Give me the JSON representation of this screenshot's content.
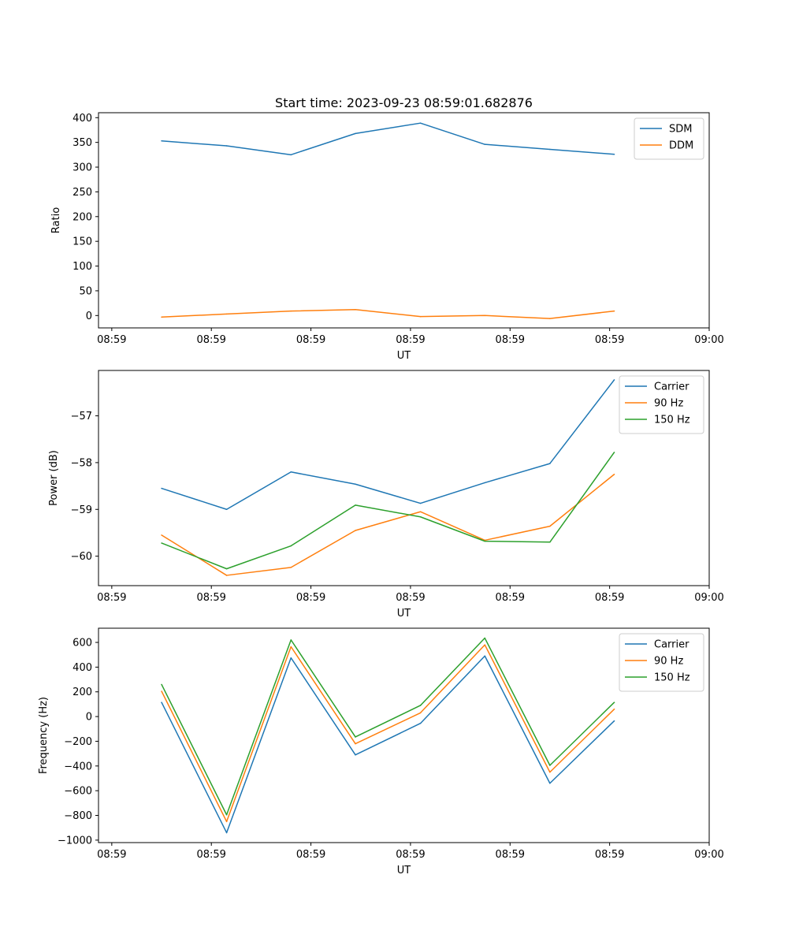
{
  "chart_data": [
    {
      "id": "ratio",
      "type": "line",
      "title": "Start time: 2023-09-23 08:59:01.682876",
      "xlabel": "UT",
      "ylabel": "Ratio",
      "xlim": [
        -0.2,
        9
      ],
      "ylim": [
        -25,
        410
      ],
      "x_tick_positions": [
        0,
        1.5,
        3,
        4.5,
        6,
        7.5,
        9
      ],
      "x_tick_labels": [
        "08:59",
        "08:59",
        "08:59",
        "08:59",
        "08:59",
        "08:59",
        "09:00"
      ],
      "y_ticks": [
        0,
        50,
        100,
        150,
        200,
        250,
        300,
        350,
        400
      ],
      "y_tick_labels": [
        "0",
        "50",
        "100",
        "150",
        "200",
        "250",
        "300",
        "350",
        "400"
      ],
      "x": [
        0.75,
        1.73,
        2.7,
        3.67,
        4.65,
        5.62,
        6.6,
        7.57
      ],
      "series": [
        {
          "name": "SDM",
          "color": "#1f77b4",
          "values": [
            353,
            343,
            325,
            368,
            389,
            346,
            336,
            326
          ]
        },
        {
          "name": "DDM",
          "color": "#ff7f0e",
          "values": [
            -3,
            3,
            9,
            12,
            -2,
            0,
            -6,
            9
          ]
        }
      ]
    },
    {
      "id": "power",
      "type": "line",
      "title": "",
      "xlabel": "UT",
      "ylabel": "Power (dB)",
      "xlim": [
        -0.2,
        9
      ],
      "ylim": [
        -60.63,
        -56.03
      ],
      "x_tick_positions": [
        0,
        1.5,
        3,
        4.5,
        6,
        7.5,
        9
      ],
      "x_tick_labels": [
        "08:59",
        "08:59",
        "08:59",
        "08:59",
        "08:59",
        "08:59",
        "09:00"
      ],
      "y_ticks": [
        -60,
        -59,
        -58,
        -57
      ],
      "y_tick_labels": [
        "−60",
        "−59",
        "−58",
        "−57"
      ],
      "x": [
        0.75,
        1.73,
        2.7,
        3.67,
        4.65,
        5.62,
        6.6,
        7.57
      ],
      "series": [
        {
          "name": "Carrier",
          "color": "#1f77b4",
          "values": [
            -58.55,
            -59.0,
            -58.2,
            -58.46,
            -58.87,
            -58.43,
            -58.02,
            -56.23
          ]
        },
        {
          "name": "90 Hz",
          "color": "#ff7f0e",
          "values": [
            -59.55,
            -60.41,
            -60.24,
            -59.45,
            -59.05,
            -59.66,
            -59.36,
            -58.25
          ]
        },
        {
          "name": "150 Hz",
          "color": "#2ca02c",
          "values": [
            -59.72,
            -60.27,
            -59.78,
            -58.91,
            -59.16,
            -59.68,
            -59.7,
            -57.78
          ]
        }
      ]
    },
    {
      "id": "frequency",
      "type": "line",
      "title": "",
      "xlabel": "UT",
      "ylabel": "Frequency (Hz)",
      "xlim": [
        -0.2,
        9
      ],
      "ylim": [
        -1020,
        715
      ],
      "x_tick_positions": [
        0,
        1.5,
        3,
        4.5,
        6,
        7.5,
        9
      ],
      "x_tick_labels": [
        "08:59",
        "08:59",
        "08:59",
        "08:59",
        "08:59",
        "08:59",
        "09:00"
      ],
      "y_ticks": [
        -1000,
        -800,
        -600,
        -400,
        -200,
        0,
        200,
        400,
        600
      ],
      "y_tick_labels": [
        "−1000",
        "−800",
        "−600",
        "−400",
        "−200",
        "0",
        "200",
        "400",
        "600"
      ],
      "x": [
        0.75,
        1.73,
        2.7,
        3.67,
        4.65,
        5.62,
        6.6,
        7.57
      ],
      "series": [
        {
          "name": "Carrier",
          "color": "#1f77b4",
          "values": [
            115,
            -940,
            475,
            -310,
            -55,
            490,
            -540,
            -35
          ]
        },
        {
          "name": "90 Hz",
          "color": "#ff7f0e",
          "values": [
            205,
            -850,
            565,
            -220,
            30,
            580,
            -450,
            60
          ]
        },
        {
          "name": "150 Hz",
          "color": "#2ca02c",
          "values": [
            260,
            -795,
            620,
            -165,
            90,
            635,
            -395,
            115
          ]
        }
      ]
    }
  ]
}
